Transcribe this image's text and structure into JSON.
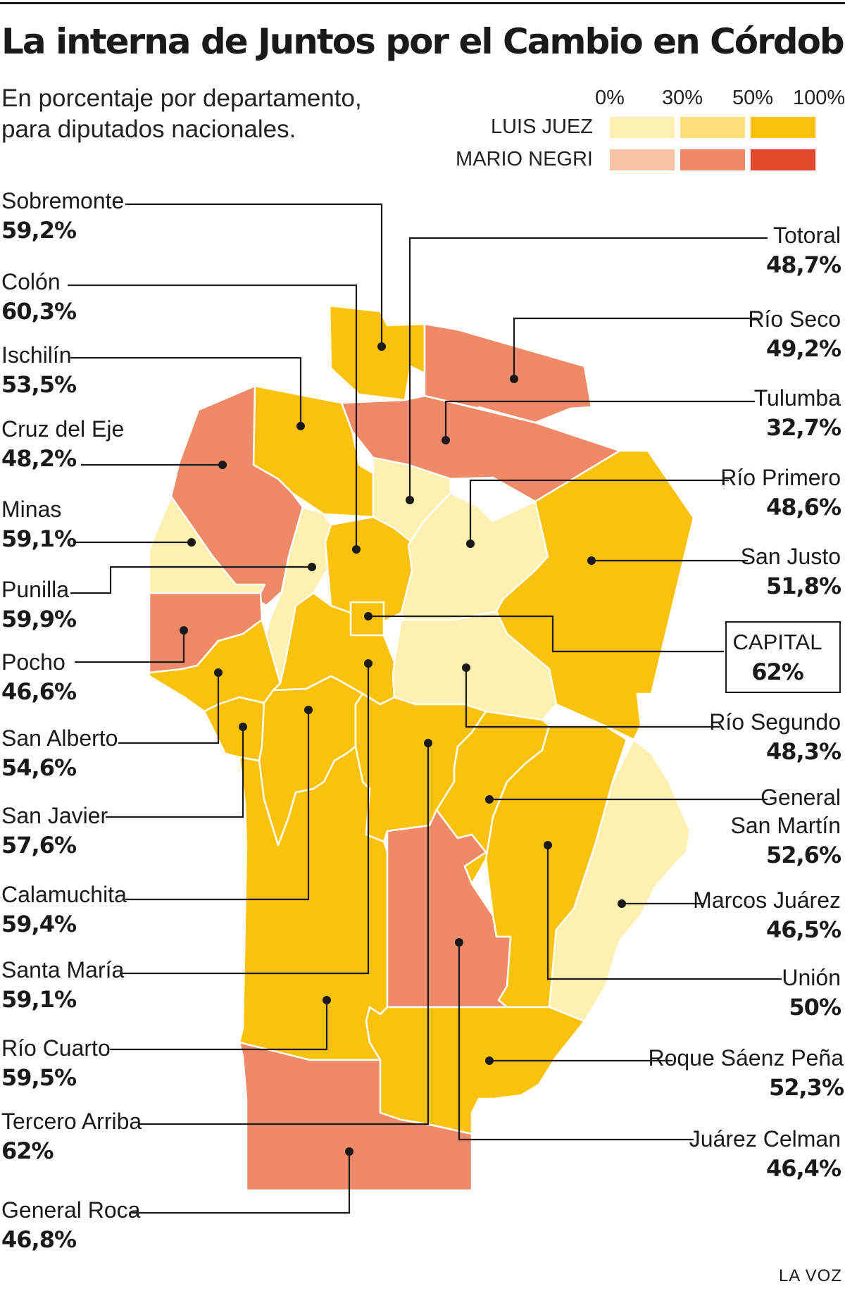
{
  "title": "La interna de Juntos por el Cambio en Córdoba",
  "subtitle": "En porcentaje por departamento, para diputados nacionales.",
  "legend": {
    "scale_labels": [
      "0%",
      "30%",
      "50%",
      "100%"
    ],
    "series": [
      {
        "name": "LUIS JUEZ",
        "colors": [
          "#fdf0b0",
          "#fbdd7a",
          "#fbc20d"
        ]
      },
      {
        "name": "MARIO NEGRI",
        "colors": [
          "#f8c4a6",
          "#ee8a67",
          "#e5492d"
        ]
      }
    ]
  },
  "departments": [
    {
      "name": "Sobremonte",
      "value": "59,2%",
      "winner": "Luis Juez"
    },
    {
      "name": "Colón",
      "value": "60,3%",
      "winner": "Luis Juez"
    },
    {
      "name": "Ischilín",
      "value": "53,5%",
      "winner": "Luis Juez"
    },
    {
      "name": "Cruz del Eje",
      "value": "48,2%",
      "winner": "Mario Negri"
    },
    {
      "name": "Minas",
      "value": "59,1%",
      "winner": "Luis Juez"
    },
    {
      "name": "Punilla",
      "value": "59,9%",
      "winner": "Luis Juez"
    },
    {
      "name": "Pocho",
      "value": "46,6%",
      "winner": "Mario Negri"
    },
    {
      "name": "San Alberto",
      "value": "54,6%",
      "winner": "Luis Juez"
    },
    {
      "name": "San Javier",
      "value": "57,6%",
      "winner": "Luis Juez"
    },
    {
      "name": "Calamuchita",
      "value": "59,4%",
      "winner": "Luis Juez"
    },
    {
      "name": "Santa María",
      "value": "59,1%",
      "winner": "Luis Juez"
    },
    {
      "name": "Río Cuarto",
      "value": "59,5%",
      "winner": "Luis Juez"
    },
    {
      "name": "Tercero Arriba",
      "value": "62%",
      "winner": "Luis Juez"
    },
    {
      "name": "General Roca",
      "value": "46,8%",
      "winner": "Mario Negri"
    },
    {
      "name": "Totoral",
      "value": "48,7%",
      "winner": "Luis Juez"
    },
    {
      "name": "Río Seco",
      "value": "49,2%",
      "winner": "Mario Negri"
    },
    {
      "name": "Tulumba",
      "value": "32,7%",
      "winner": "Mario Negri"
    },
    {
      "name": "Río Primero",
      "value": "48,6%",
      "winner": "Luis Juez"
    },
    {
      "name": "San Justo",
      "value": "51,8%",
      "winner": "Luis Juez"
    },
    {
      "name": "CAPITAL",
      "value": "62%",
      "winner": "Luis Juez"
    },
    {
      "name": "Río Segundo",
      "value": "48,3%",
      "winner": "Luis Juez"
    },
    {
      "name": "General San Martín",
      "value": "52,6%",
      "winner": "Luis Juez"
    },
    {
      "name": "Marcos Juárez",
      "value": "46,5%",
      "winner": "Luis Juez"
    },
    {
      "name": "Unión",
      "value": "50%",
      "winner": "Luis Juez"
    },
    {
      "name": "Roque Sáenz Peña",
      "value": "52,3%",
      "winner": "Luis Juez"
    },
    {
      "name": "Juárez Celman",
      "value": "46,4%",
      "winner": "Mario Negri"
    }
  ],
  "footer": "LA VOZ"
}
